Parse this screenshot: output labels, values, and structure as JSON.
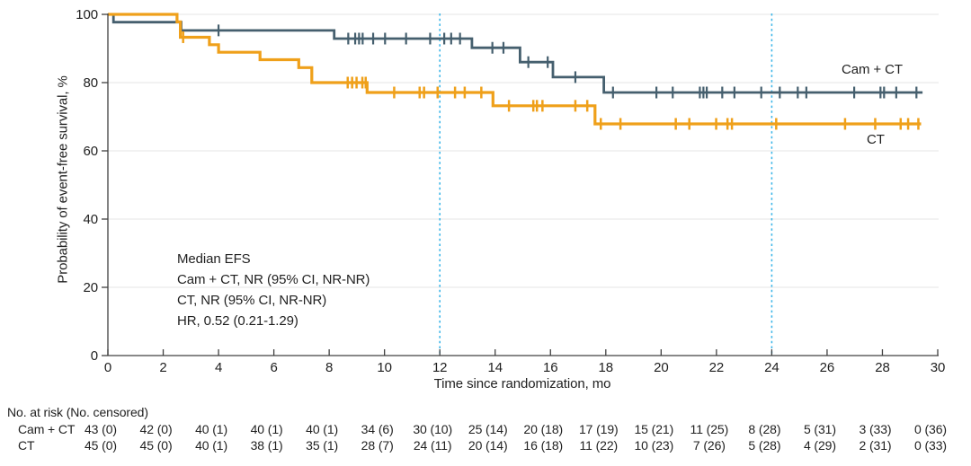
{
  "chart_data": {
    "type": "line",
    "subtype": "kaplan_meier_step",
    "title": "",
    "xlabel": "Time since randomization, mo",
    "ylabel": "Probability of event-free survival, %",
    "xlim": [
      0,
      30
    ],
    "ylim": [
      0,
      100
    ],
    "x_ticks": [
      0,
      2,
      4,
      6,
      8,
      10,
      12,
      14,
      16,
      18,
      20,
      22,
      24,
      26,
      28,
      30
    ],
    "y_ticks": [
      0,
      20,
      40,
      60,
      80,
      100
    ],
    "gridlines_y": [
      20,
      40,
      60,
      80,
      100
    ],
    "grid": "horizontal-only",
    "reference_lines_x": [
      12,
      24
    ],
    "legend_position": "end-of-curve-labels",
    "annotation_lines": [
      "Median EFS",
      "Cam + CT, NR (95% CI, NR-NR)",
      "CT, NR (95% CI, NR-NR)",
      "HR, 0.52 (0.21-1.29)"
    ],
    "series": [
      {
        "name": "Cam + CT",
        "color": "#455F6E",
        "stroke_width": 2.8,
        "steps": [
          [
            0,
            100
          ],
          [
            0.2,
            97.7
          ],
          [
            2.65,
            95.3
          ],
          [
            8.18,
            92.9
          ],
          [
            13.16,
            90.2
          ],
          [
            14.9,
            86.0
          ],
          [
            16.09,
            81.6
          ],
          [
            17.93,
            77.1
          ],
          [
            29.45,
            77.1
          ]
        ],
        "censor_marks": [
          [
            4.0,
            95.3
          ],
          [
            8.69,
            92.9
          ],
          [
            8.94,
            92.9
          ],
          [
            9.08,
            92.9
          ],
          [
            9.21,
            92.9
          ],
          [
            9.59,
            92.9
          ],
          [
            10.02,
            92.9
          ],
          [
            10.78,
            92.9
          ],
          [
            11.65,
            92.9
          ],
          [
            12.16,
            92.9
          ],
          [
            12.41,
            92.9
          ],
          [
            12.73,
            92.9
          ],
          [
            13.9,
            90.2
          ],
          [
            14.3,
            90.2
          ],
          [
            15.2,
            86.0
          ],
          [
            15.9,
            86.0
          ],
          [
            16.9,
            81.6
          ],
          [
            18.26,
            77.1
          ],
          [
            19.83,
            77.1
          ],
          [
            20.42,
            77.1
          ],
          [
            21.4,
            77.1
          ],
          [
            21.53,
            77.1
          ],
          [
            21.65,
            77.1
          ],
          [
            22.21,
            77.1
          ],
          [
            22.65,
            77.1
          ],
          [
            23.62,
            77.1
          ],
          [
            24.29,
            77.1
          ],
          [
            24.94,
            77.1
          ],
          [
            25.25,
            77.1
          ],
          [
            26.98,
            77.1
          ],
          [
            27.93,
            77.1
          ],
          [
            28.06,
            77.1
          ],
          [
            28.5,
            77.1
          ],
          [
            29.23,
            77.1
          ]
        ]
      },
      {
        "name": "CT",
        "color": "#EFA01A",
        "stroke_width": 3.2,
        "steps": [
          [
            0,
            100
          ],
          [
            2.5,
            97.8
          ],
          [
            2.62,
            93.3
          ],
          [
            3.67,
            91.1
          ],
          [
            4.0,
            88.9
          ],
          [
            5.5,
            86.7
          ],
          [
            6.9,
            84.4
          ],
          [
            7.37,
            80.0
          ],
          [
            9.37,
            77.1
          ],
          [
            13.92,
            73.2
          ],
          [
            17.61,
            67.9
          ],
          [
            29.4,
            67.9
          ]
        ],
        "censor_marks": [
          [
            2.72,
            93.3
          ],
          [
            8.67,
            80.0
          ],
          [
            8.83,
            80.0
          ],
          [
            8.99,
            80.0
          ],
          [
            9.2,
            80.0
          ],
          [
            9.32,
            80.0
          ],
          [
            10.35,
            77.1
          ],
          [
            11.27,
            77.1
          ],
          [
            11.43,
            77.1
          ],
          [
            11.92,
            77.1
          ],
          [
            12.55,
            77.1
          ],
          [
            12.9,
            77.1
          ],
          [
            13.5,
            77.1
          ],
          [
            14.5,
            73.2
          ],
          [
            15.38,
            73.2
          ],
          [
            15.51,
            73.2
          ],
          [
            15.71,
            73.2
          ],
          [
            16.9,
            73.2
          ],
          [
            17.33,
            73.2
          ],
          [
            17.82,
            67.9
          ],
          [
            18.53,
            67.9
          ],
          [
            20.53,
            67.9
          ],
          [
            21.02,
            67.9
          ],
          [
            21.99,
            67.9
          ],
          [
            22.4,
            67.9
          ],
          [
            22.56,
            67.9
          ],
          [
            24.16,
            67.9
          ],
          [
            26.65,
            67.9
          ],
          [
            27.74,
            67.9
          ],
          [
            28.66,
            67.9
          ],
          [
            28.93,
            67.9
          ],
          [
            29.3,
            67.9
          ]
        ]
      }
    ],
    "risk_table": {
      "header": "No. at risk (No. censored)",
      "times": [
        0,
        2,
        4,
        6,
        8,
        10,
        12,
        14,
        16,
        18,
        20,
        22,
        24,
        26,
        28,
        30
      ],
      "rows": [
        {
          "label": "Cam + CT",
          "values": [
            "43 (0)",
            "42 (0)",
            "40 (1)",
            "40 (1)",
            "40 (1)",
            "34 (6)",
            "30 (10)",
            "25 (14)",
            "20 (18)",
            "17 (19)",
            "15 (21)",
            "11 (25)",
            "8 (28)",
            "5 (31)",
            "3 (33)",
            "0 (36)"
          ]
        },
        {
          "label": "CT",
          "values": [
            "45 (0)",
            "45 (0)",
            "40 (1)",
            "38 (1)",
            "35 (1)",
            "28 (7)",
            "24 (11)",
            "20 (14)",
            "16 (18)",
            "11 (22)",
            "10 (23)",
            "7 (26)",
            "5 (28)",
            "4 (29)",
            "2 (31)",
            "0 (33)"
          ]
        }
      ]
    },
    "colors": {
      "axis": "#404040",
      "text": "#1F1F1F",
      "grid": "#E9E9E9",
      "reference_line": "#3DB6E8"
    }
  }
}
